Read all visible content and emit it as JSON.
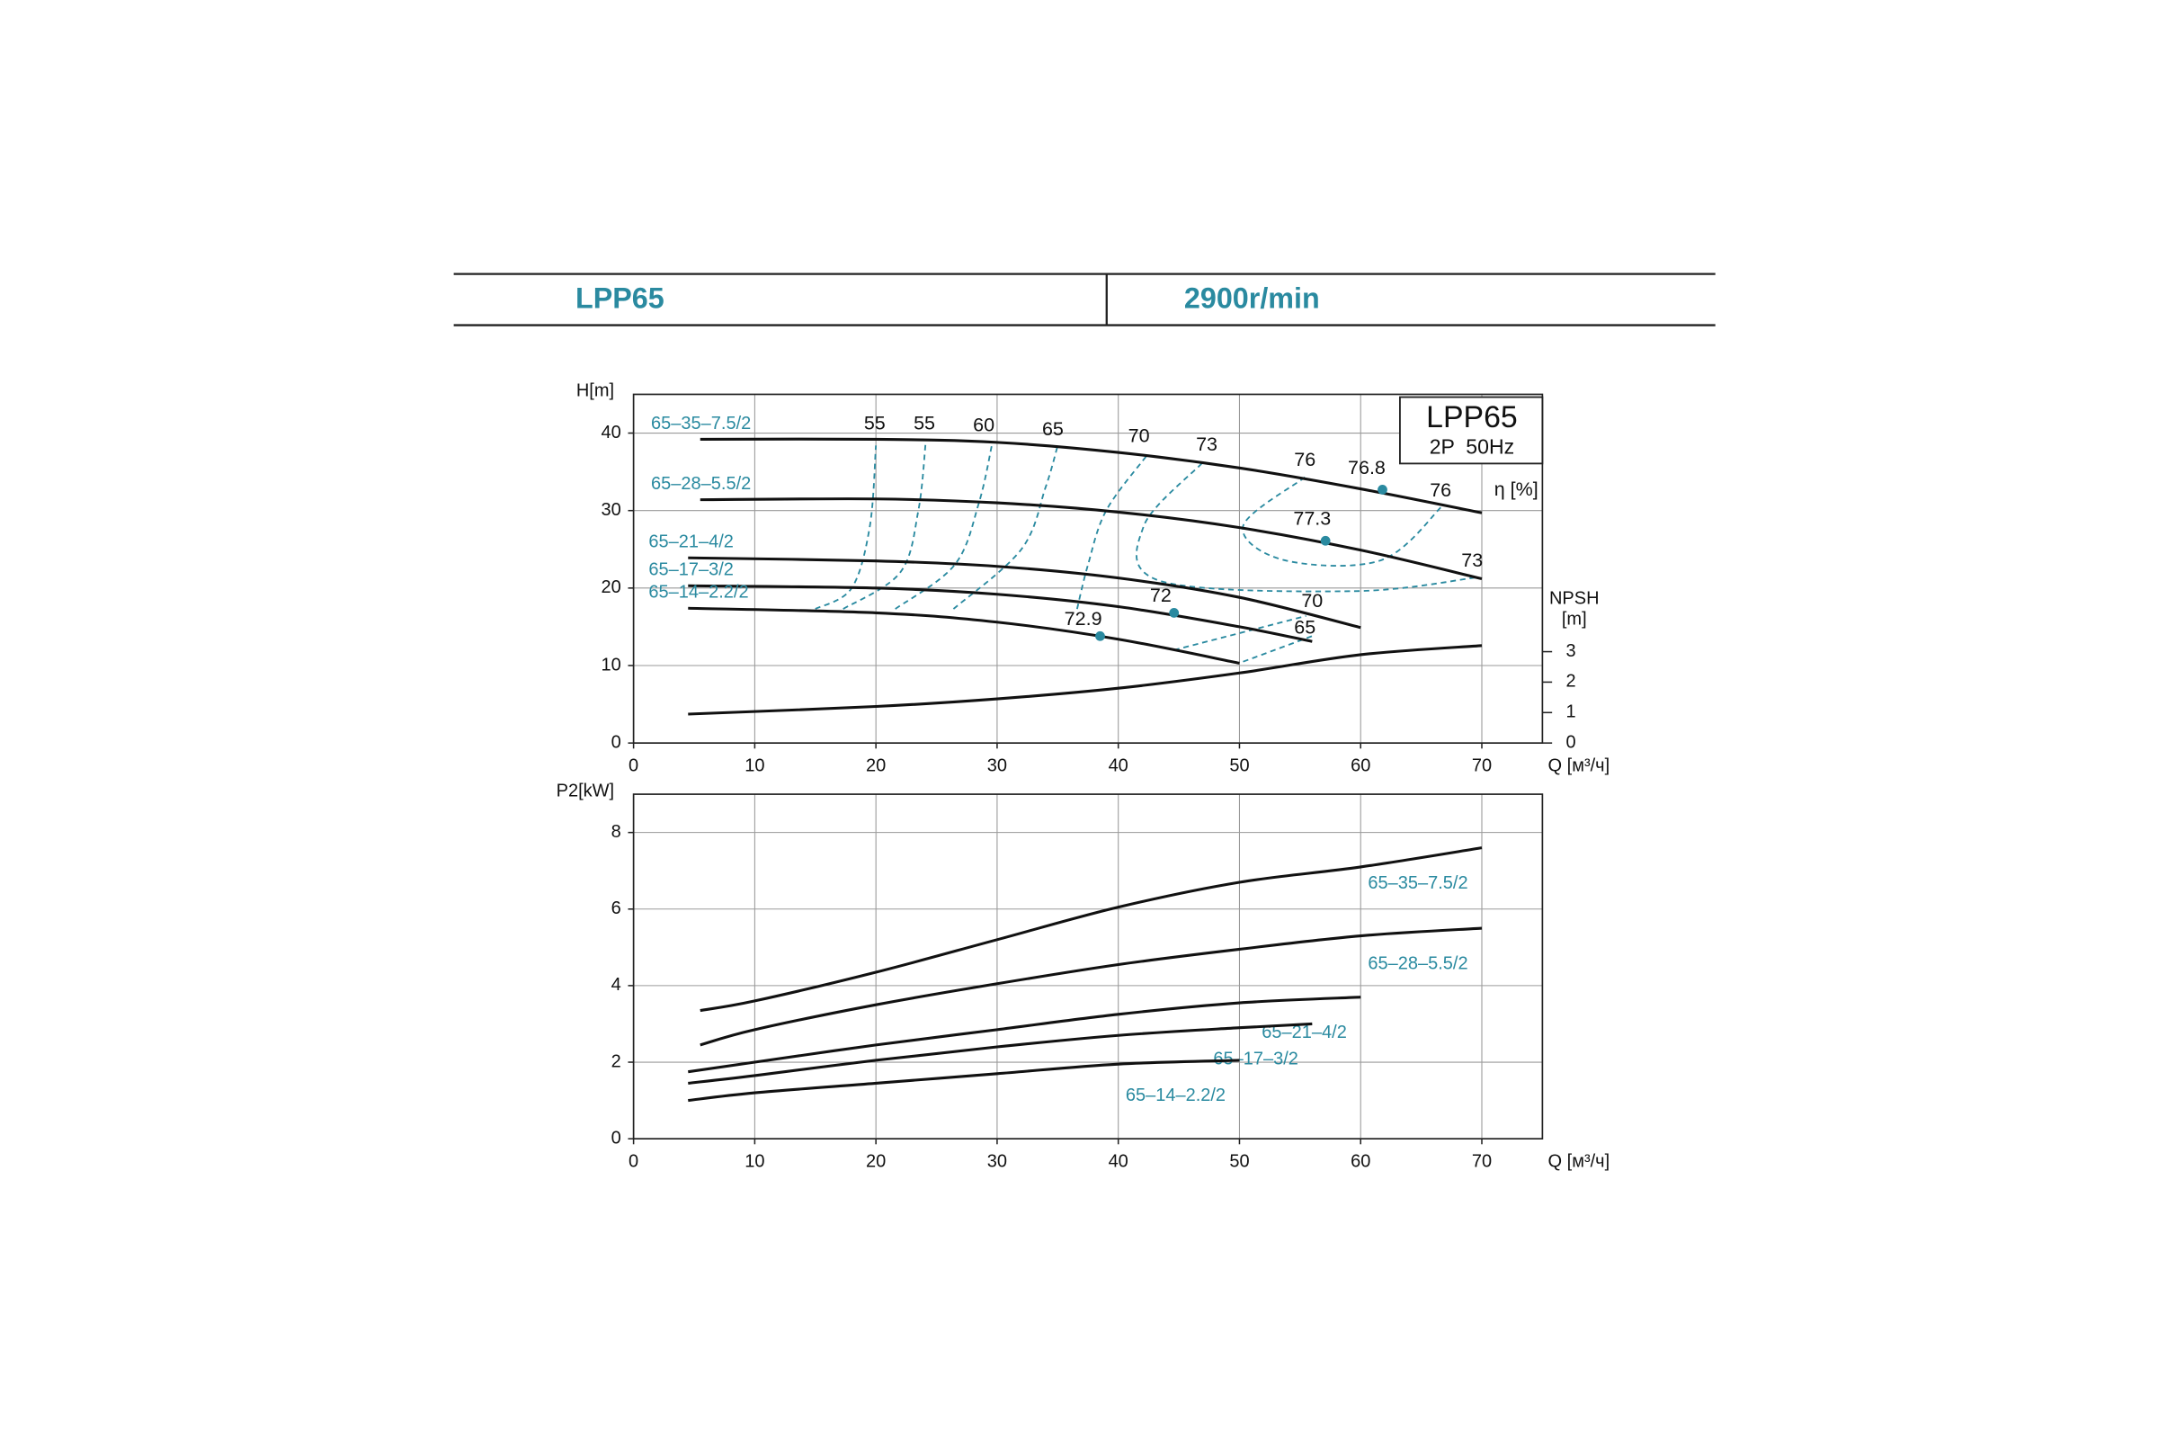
{
  "header": {
    "model": "LPP65",
    "speed": "2900r/min"
  },
  "chart_data": [
    {
      "type": "line",
      "y_label": "H[m]",
      "x_label": "Q [м³/ч]",
      "box_title": "LPP65",
      "box_subtitle": "2P  50Hz",
      "eta_label": "η [%]",
      "y2_label": "NPSH",
      "y2_unit": "[m]",
      "xlim": [
        0,
        75
      ],
      "xticks": [
        0,
        10,
        20,
        30,
        40,
        50,
        60,
        70
      ],
      "ylim": [
        0,
        45
      ],
      "yticks": [
        0,
        10,
        20,
        30,
        40
      ],
      "y2lim": [
        0,
        11.45
      ],
      "y2ticks": [
        0,
        1,
        2,
        3
      ],
      "grid": true,
      "series_label_position": "start",
      "series": [
        {
          "name": "65–35–7.5/2",
          "color": "#111111",
          "x": [
            5.5,
            20,
            30,
            40,
            50,
            60,
            70
          ],
          "values": [
            39.2,
            39.2,
            38.8,
            37.5,
            35.5,
            32.8,
            29.7
          ]
        },
        {
          "name": "65–28–5.5/2",
          "color": "#111111",
          "x": [
            5.5,
            20,
            30,
            40,
            50,
            60,
            70
          ],
          "values": [
            31.4,
            31.5,
            31,
            29.8,
            27.8,
            24.9,
            21.2
          ]
        },
        {
          "name": "65–21–4/2",
          "color": "#111111",
          "x": [
            4.5,
            20,
            30,
            40,
            50,
            60
          ],
          "values": [
            23.9,
            23.5,
            22.8,
            21.3,
            18.8,
            14.9
          ]
        },
        {
          "name": "65–17–3/2",
          "color": "#111111",
          "x": [
            4.5,
            20,
            30,
            40,
            50,
            56
          ],
          "values": [
            20.3,
            20,
            19.2,
            17.6,
            15,
            13.1
          ]
        },
        {
          "name": "65–14–2.2/2",
          "color": "#111111",
          "x": [
            4.5,
            20,
            30,
            40,
            50
          ],
          "values": [
            17.4,
            16.8,
            15.6,
            13.4,
            10.3
          ]
        },
        {
          "color": "#111111",
          "axis": "y2",
          "x": [
            4.5,
            20,
            30,
            40,
            50,
            60,
            70
          ],
          "values": [
            0.95,
            1.2,
            1.45,
            1.8,
            2.3,
            2.9,
            3.2
          ]
        }
      ],
      "efficiency_contours": [
        {
          "x": [
            15,
            18,
            19.5,
            20
          ],
          "y": [
            17.3,
            20,
            28,
            38.4
          ]
        },
        {
          "x": [
            17.3,
            22,
            23.5,
            24.1
          ],
          "y": [
            17.3,
            22,
            30,
            38.7
          ]
        },
        {
          "x": [
            21.6,
            26.5,
            28.5,
            29.6
          ],
          "y": [
            17.3,
            23,
            31,
            38.7
          ]
        },
        {
          "x": [
            26.4,
            32,
            34,
            35
          ],
          "y": [
            17.3,
            25,
            33,
            38.4
          ]
        },
        {
          "x": [
            36.6,
            37.5,
            39,
            42.3
          ],
          "y": [
            17.3,
            23,
            30,
            37
          ]
        },
        {
          "x": [
            46.9,
            42.1,
            43.5,
            59.4,
            69.7
          ],
          "y": [
            36.1,
            28,
            20.9,
            19.6,
            21.4
          ]
        },
        {
          "x": [
            55.4,
            50.3,
            53.7,
            61.7,
            66.8
          ],
          "y": [
            34.3,
            28,
            23.6,
            23.6,
            30.7
          ]
        },
        {
          "x": [
            44.6,
            55.5
          ],
          "y": [
            12,
            16.4
          ]
        },
        {
          "x": [
            50.3,
            56
          ],
          "y": [
            10.5,
            13.8
          ]
        }
      ],
      "efficiency_labels": [
        {
          "value": 55,
          "x": 19.9,
          "y": 41.1
        },
        {
          "value": 55,
          "x": 24,
          "y": 41.1
        },
        {
          "value": 60,
          "x": 28.9,
          "y": 40.9
        },
        {
          "value": 65,
          "x": 34.6,
          "y": 40.4
        },
        {
          "value": 70,
          "x": 41.7,
          "y": 39.5
        },
        {
          "value": 73,
          "x": 47.3,
          "y": 38.4
        },
        {
          "value": 76,
          "x": 55.4,
          "y": 36.4
        },
        {
          "value": 76.8,
          "x": 60.5,
          "y": 35.4
        },
        {
          "value": 76,
          "x": 66.6,
          "y": 32.5
        },
        {
          "value": 77.3,
          "x": 56,
          "y": 28.8
        },
        {
          "value": 73,
          "x": 69.2,
          "y": 23.4
        },
        {
          "value": 70,
          "x": 56,
          "y": 18.2
        },
        {
          "value": 72,
          "x": 43.5,
          "y": 18.9
        },
        {
          "value": 65,
          "x": 55.4,
          "y": 14.8
        },
        {
          "value": 72.9,
          "x": 37.1,
          "y": 15.9
        }
      ],
      "bep_points": [
        {
          "x": 61.8,
          "y": 32.7
        },
        {
          "x": 57.1,
          "y": 26.1
        },
        {
          "x": 44.6,
          "y": 16.8
        },
        {
          "x": 38.5,
          "y": 13.8
        }
      ]
    },
    {
      "type": "line",
      "y_label": "P2[kW]",
      "x_label": "Q [м³/ч]",
      "xlim": [
        0,
        75
      ],
      "xticks": [
        0,
        10,
        20,
        30,
        40,
        50,
        60,
        70
      ],
      "ylim": [
        0,
        9
      ],
      "yticks": [
        0,
        2,
        4,
        6,
        8
      ],
      "grid": true,
      "series_label_position": "end",
      "series": [
        {
          "name": "65–35–7.5/2",
          "color": "#111111",
          "x": [
            5.5,
            10,
            20,
            30,
            40,
            50,
            60,
            70
          ],
          "values": [
            3.35,
            3.6,
            4.35,
            5.2,
            6.05,
            6.7,
            7.1,
            7.6
          ]
        },
        {
          "name": "65–28–5.5/2",
          "color": "#111111",
          "x": [
            5.5,
            10,
            20,
            30,
            40,
            50,
            60,
            70
          ],
          "values": [
            2.45,
            2.85,
            3.5,
            4.05,
            4.55,
            4.95,
            5.3,
            5.5
          ]
        },
        {
          "name": "65–21–4/2",
          "color": "#111111",
          "x": [
            4.5,
            10,
            20,
            30,
            40,
            50,
            60
          ],
          "values": [
            1.75,
            2,
            2.45,
            2.85,
            3.25,
            3.55,
            3.7
          ]
        },
        {
          "name": "65–17–3/2",
          "color": "#111111",
          "x": [
            4.5,
            10,
            20,
            30,
            40,
            50,
            56
          ],
          "values": [
            1.45,
            1.65,
            2.05,
            2.4,
            2.7,
            2.9,
            3
          ]
        },
        {
          "name": "65–14–2.2/2",
          "color": "#111111",
          "x": [
            4.5,
            10,
            20,
            30,
            40,
            50
          ],
          "values": [
            1,
            1.2,
            1.45,
            1.7,
            1.95,
            2.05
          ]
        }
      ]
    }
  ]
}
